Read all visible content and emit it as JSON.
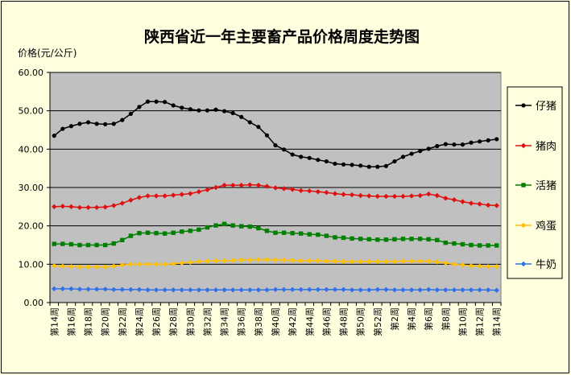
{
  "chart_data": {
    "type": "line",
    "title": "陕西省近一年主要畜产品价格周度走势图",
    "ylabel": "价格(元/公斤)",
    "xlabel": "",
    "ylim": [
      0,
      60
    ],
    "y_ticks": [
      "0.00",
      "10.00",
      "20.00",
      "30.00",
      "40.00",
      "50.00",
      "60.00"
    ],
    "grid": true,
    "plot_background": "#c0c0c0",
    "legend_position": "right",
    "x_tick_labels": [
      "第14周",
      "第16周",
      "第18周",
      "第20周",
      "第22周",
      "第24周",
      "第26周",
      "第28周",
      "第30周",
      "第32周",
      "第34周",
      "第36周",
      "第38周",
      "第40周",
      "第42周",
      "第44周",
      "第46周",
      "第48周",
      "第50周",
      "第52周",
      "第2周",
      "第4周",
      "第6周",
      "第8周",
      "第10周",
      "第12周",
      "第14周"
    ],
    "x": [
      "第14周",
      "第15周",
      "第16周",
      "第17周",
      "第18周",
      "第19周",
      "第20周",
      "第21周",
      "第22周",
      "第23周",
      "第24周",
      "第25周",
      "第26周",
      "第27周",
      "第28周",
      "第29周",
      "第30周",
      "第31周",
      "第32周",
      "第33周",
      "第34周",
      "第35周",
      "第36周",
      "第37周",
      "第38周",
      "第39周",
      "第40周",
      "第41周",
      "第42周",
      "第43周",
      "第44周",
      "第45周",
      "第46周",
      "第47周",
      "第48周",
      "第49周",
      "第50周",
      "第51周",
      "第52周",
      "第1周",
      "第2周",
      "第3周",
      "第4周",
      "第5周",
      "第6周",
      "第7周",
      "第8周",
      "第9周",
      "第10周",
      "第11周",
      "第12周",
      "第13周",
      "第14周"
    ],
    "series": [
      {
        "name": "仔猪",
        "color": "#000000",
        "values": [
          43.5,
          45.3,
          46.0,
          46.6,
          47.0,
          46.6,
          46.5,
          46.6,
          47.6,
          49.2,
          51.0,
          52.4,
          52.4,
          52.3,
          51.4,
          50.8,
          50.4,
          50.1,
          50.1,
          50.3,
          49.9,
          49.4,
          48.4,
          47.0,
          45.8,
          43.6,
          41.0,
          39.9,
          38.6,
          38.0,
          37.7,
          37.2,
          36.8,
          36.2,
          36.0,
          35.9,
          35.7,
          35.4,
          35.4,
          35.6,
          36.8,
          38.0,
          38.8,
          39.5,
          40.1,
          40.8,
          41.3,
          41.2,
          41.2,
          41.7,
          42.0,
          42.3,
          42.6
        ]
      },
      {
        "name": "猪肉",
        "color": "#e01010",
        "values": [
          25.0,
          25.1,
          25.0,
          24.8,
          24.8,
          24.8,
          24.9,
          25.3,
          25.9,
          26.7,
          27.4,
          27.8,
          27.8,
          27.8,
          28.0,
          28.2,
          28.4,
          28.9,
          29.4,
          30.0,
          30.6,
          30.6,
          30.6,
          30.7,
          30.6,
          30.3,
          29.9,
          29.7,
          29.5,
          29.2,
          29.1,
          28.9,
          28.7,
          28.4,
          28.2,
          28.1,
          27.9,
          27.8,
          27.7,
          27.7,
          27.7,
          27.7,
          27.8,
          27.9,
          28.3,
          27.9,
          27.2,
          26.8,
          26.3,
          25.9,
          25.7,
          25.4,
          25.3
        ]
      },
      {
        "name": "活猪",
        "color": "#008000",
        "values": [
          15.3,
          15.3,
          15.2,
          15.0,
          15.0,
          15.0,
          15.0,
          15.4,
          16.3,
          17.4,
          18.1,
          18.2,
          18.1,
          18.0,
          18.2,
          18.5,
          18.7,
          19.0,
          19.6,
          20.1,
          20.5,
          20.1,
          19.9,
          19.8,
          19.4,
          18.7,
          18.2,
          18.2,
          18.1,
          18.0,
          17.8,
          17.7,
          17.4,
          17.0,
          16.9,
          16.7,
          16.6,
          16.5,
          16.4,
          16.4,
          16.5,
          16.6,
          16.6,
          16.6,
          16.5,
          16.3,
          15.6,
          15.4,
          15.2,
          15.0,
          14.9,
          14.9,
          14.9
        ]
      },
      {
        "name": "鸡蛋",
        "color": "#ffc000",
        "values": [
          9.6,
          9.5,
          9.4,
          9.3,
          9.3,
          9.3,
          9.3,
          9.5,
          9.8,
          10.0,
          10.0,
          10.0,
          10.0,
          10.0,
          10.1,
          10.3,
          10.5,
          10.7,
          10.8,
          10.9,
          10.9,
          11.0,
          11.1,
          11.1,
          11.2,
          11.2,
          11.1,
          11.1,
          11.0,
          10.9,
          10.9,
          10.9,
          10.8,
          10.8,
          10.7,
          10.7,
          10.7,
          10.7,
          10.7,
          10.7,
          10.7,
          10.8,
          10.8,
          10.8,
          10.8,
          10.6,
          10.3,
          10.0,
          9.8,
          9.6,
          9.5,
          9.4,
          9.4
        ]
      },
      {
        "name": "牛奶",
        "color": "#3070e8",
        "values": [
          3.6,
          3.6,
          3.6,
          3.5,
          3.5,
          3.5,
          3.5,
          3.4,
          3.4,
          3.4,
          3.4,
          3.3,
          3.3,
          3.3,
          3.3,
          3.3,
          3.3,
          3.3,
          3.3,
          3.3,
          3.3,
          3.3,
          3.3,
          3.3,
          3.3,
          3.3,
          3.4,
          3.4,
          3.4,
          3.4,
          3.4,
          3.4,
          3.4,
          3.4,
          3.4,
          3.3,
          3.3,
          3.3,
          3.4,
          3.4,
          3.3,
          3.3,
          3.3,
          3.3,
          3.4,
          3.3,
          3.3,
          3.3,
          3.3,
          3.3,
          3.3,
          3.3,
          3.2
        ]
      }
    ]
  }
}
